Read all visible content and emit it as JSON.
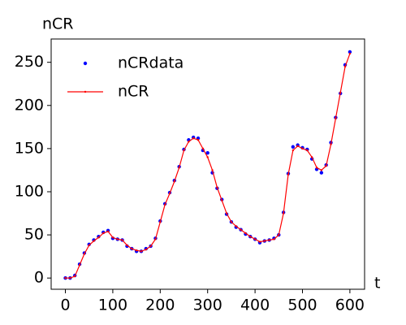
{
  "chart_data": {
    "type": "scatter_line",
    "x_label": "t",
    "y_label": "nCR",
    "x": [
      0,
      10,
      20,
      30,
      40,
      50,
      60,
      70,
      80,
      90,
      100,
      110,
      120,
      130,
      140,
      150,
      160,
      170,
      180,
      190,
      200,
      210,
      220,
      230,
      240,
      250,
      260,
      270,
      280,
      290,
      300,
      310,
      320,
      330,
      340,
      350,
      360,
      370,
      380,
      390,
      400,
      410,
      420,
      430,
      440,
      450,
      460,
      470,
      480,
      490,
      500,
      510,
      520,
      530,
      540,
      550,
      560,
      570,
      580,
      590,
      600
    ],
    "series": [
      {
        "name": "nCRdata",
        "color": "#0000ff",
        "style": "points",
        "values": [
          0,
          0,
          3,
          16,
          29,
          39,
          44,
          48,
          53,
          55,
          46,
          45,
          44,
          37,
          34,
          31,
          31,
          34,
          37,
          46,
          66,
          86,
          99,
          113,
          129,
          149,
          160,
          163,
          162,
          148,
          145,
          122,
          104,
          91,
          74,
          65,
          59,
          56,
          51,
          48,
          45,
          41,
          43,
          44,
          46,
          50,
          76,
          121,
          152,
          154,
          151,
          149,
          138,
          126,
          122,
          131,
          157,
          186,
          214,
          247,
          262
        ]
      },
      {
        "name": "nCR",
        "color": "#ff0000",
        "style": "line",
        "values": [
          0,
          0,
          2,
          15,
          28,
          38,
          43,
          47,
          52,
          54,
          47,
          45,
          44,
          38,
          34,
          32,
          31,
          33,
          37,
          45,
          65,
          85,
          98,
          112,
          128,
          148,
          158,
          162,
          160,
          150,
          140,
          125,
          105,
          90,
          75,
          65,
          60,
          56,
          52,
          48,
          45,
          42,
          43,
          44,
          45,
          50,
          75,
          120,
          148,
          153,
          150,
          148,
          140,
          128,
          125,
          130,
          155,
          185,
          215,
          245,
          260
        ]
      }
    ],
    "xlim": [
      -30,
      631
    ],
    "ylim": [
      -13,
      277
    ],
    "xticks": [
      0,
      100,
      200,
      300,
      400,
      500,
      600
    ],
    "yticks": [
      0,
      50,
      100,
      150,
      200,
      250
    ],
    "legend": "upper left"
  }
}
